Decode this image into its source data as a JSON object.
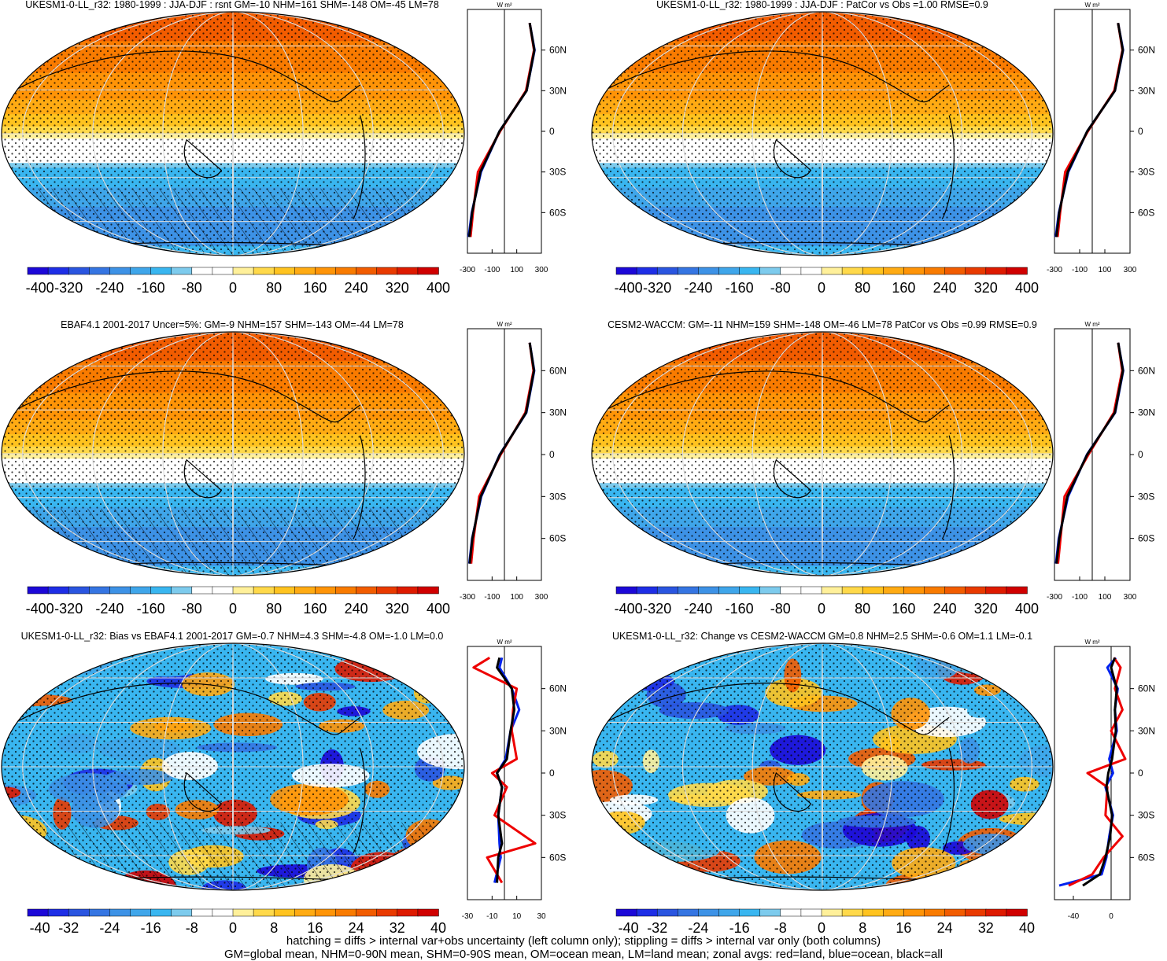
{
  "colors": {
    "ocean_line": "#0022ee",
    "land_line": "#ee0000",
    "all_line": "#000000",
    "stipple": "#000000",
    "coast": "#000000",
    "graticule": "#dddddd"
  },
  "palettes": {
    "absolute": [
      "#1c08d8",
      "#1e2ee6",
      "#2a55e0",
      "#3575e2",
      "#3d92e6",
      "#3fa6ea",
      "#39b6f0",
      "#7dcbed",
      "#ffffff",
      "#ffffff",
      "#fff09a",
      "#ffd94a",
      "#ffc31f",
      "#ffab13",
      "#ff9407",
      "#f97b00",
      "#f25c00",
      "#e93a00",
      "#de1a00",
      "#d00000"
    ],
    "difference": [
      "#1c08d8",
      "#1e2ee6",
      "#2a55e0",
      "#3575e2",
      "#3d92e6",
      "#3fa6ea",
      "#39b6f0",
      "#7dcbed",
      "#ffffff",
      "#ffffff",
      "#fff09a",
      "#ffd94a",
      "#ffc31f",
      "#ffab13",
      "#ff9407",
      "#f97b00",
      "#f25c00",
      "#e93a00",
      "#de1a00",
      "#d00000"
    ]
  },
  "chart_data": [
    {
      "type": "heatmap",
      "title": "UKESM1-0-LL_r32: 1980-1999 : JJA-DJF : rsnt GM=-10 NHM=161 SHM=-148 OM=-45 LM=78",
      "field": "absolute",
      "hatching": true,
      "colorbar": {
        "labels": [
          "-400",
          "-320",
          "-240",
          "-160",
          "-80",
          "0",
          "80",
          "160",
          "240",
          "320",
          "400"
        ],
        "range": [
          -400,
          400
        ]
      },
      "zonal": {
        "unit": "W m²",
        "xlim": [
          -300,
          300
        ],
        "xticks": [
          "-300",
          "-100",
          "100",
          "300"
        ],
        "lat_ticks": [
          "60N",
          "30N",
          "0",
          "30S",
          "60S"
        ],
        "series": [
          {
            "name": "ocean",
            "lat": [
              -78,
              -60,
              -30,
              0,
              30,
              60,
              80
            ],
            "values": [
              -290,
              -265,
              -190,
              -40,
              180,
              245,
              205
            ]
          },
          {
            "name": "land",
            "lat": [
              -78,
              -60,
              -30,
              0,
              30,
              60,
              80
            ],
            "values": [
              -275,
              -255,
              -215,
              -35,
              175,
              240,
              205
            ]
          },
          {
            "name": "all",
            "lat": [
              -78,
              -60,
              -30,
              0,
              30,
              60,
              80
            ],
            "values": [
              -285,
              -262,
              -195,
              -40,
              180,
              243,
              205
            ]
          }
        ]
      }
    },
    {
      "type": "heatmap",
      "title": "UKESM1-0-LL_r32: 1980-1999 : JJA-DJF : PatCor vs Obs =1.00 RMSE=0.9",
      "field": "absolute",
      "hatching": false,
      "colorbar": {
        "labels": [
          "-400",
          "-320",
          "-240",
          "-160",
          "-80",
          "0",
          "80",
          "160",
          "240",
          "320",
          "400"
        ],
        "range": [
          -400,
          400
        ]
      },
      "zonal": {
        "unit": "W m²",
        "xlim": [
          -300,
          300
        ],
        "xticks": [
          "-300",
          "-100",
          "100",
          "300"
        ],
        "lat_ticks": [
          "60N",
          "30N",
          "0",
          "30S",
          "60S"
        ],
        "series": [
          {
            "name": "ocean",
            "lat": [
              -78,
              -60,
              -30,
              0,
              30,
              60,
              80
            ],
            "values": [
              -290,
              -265,
              -190,
              -40,
              180,
              245,
              205
            ]
          },
          {
            "name": "land",
            "lat": [
              -78,
              -60,
              -30,
              0,
              30,
              60,
              80
            ],
            "values": [
              -275,
              -255,
              -215,
              -35,
              175,
              240,
              205
            ]
          },
          {
            "name": "all",
            "lat": [
              -78,
              -60,
              -30,
              0,
              30,
              60,
              80
            ],
            "values": [
              -285,
              -262,
              -195,
              -40,
              180,
              243,
              205
            ]
          }
        ]
      }
    },
    {
      "type": "heatmap",
      "title": "EBAF4.1 2001-2017 Uncer=5%: GM=-9 NHM=157 SHM=-143 OM=-44 LM=78",
      "field": "absolute",
      "hatching": true,
      "colorbar": {
        "labels": [
          "-400",
          "-320",
          "-240",
          "-160",
          "-80",
          "0",
          "80",
          "160",
          "240",
          "320",
          "400"
        ],
        "range": [
          -400,
          400
        ]
      },
      "zonal": {
        "unit": "W m²",
        "xlim": [
          -300,
          300
        ],
        "xticks": [
          "-300",
          "-100",
          "100",
          "300"
        ],
        "lat_ticks": [
          "60N",
          "30N",
          "0",
          "30S",
          "60S"
        ],
        "series": [
          {
            "name": "ocean",
            "lat": [
              -78,
              -60,
              -30,
              0,
              30,
              60,
              80
            ],
            "values": [
              -285,
              -262,
              -188,
              -38,
              178,
              242,
              205
            ]
          },
          {
            "name": "land",
            "lat": [
              -78,
              -60,
              -30,
              0,
              30,
              60,
              80
            ],
            "values": [
              -270,
              -250,
              -205,
              -30,
              170,
              236,
              205
            ]
          },
          {
            "name": "all",
            "lat": [
              -78,
              -60,
              -30,
              0,
              30,
              60,
              80
            ],
            "values": [
              -282,
              -260,
              -192,
              -36,
              176,
              240,
              205
            ]
          }
        ]
      }
    },
    {
      "type": "heatmap",
      "title": "CESM2-WACCM: GM=-11 NHM=159 SHM=-148 OM=-46 LM=78 PatCor vs Obs =0.99 RMSE=0.9",
      "field": "absolute",
      "hatching": false,
      "colorbar": {
        "labels": [
          "-400",
          "-320",
          "-240",
          "-160",
          "-80",
          "0",
          "80",
          "160",
          "240",
          "320",
          "400"
        ],
        "range": [
          -400,
          400
        ]
      },
      "zonal": {
        "unit": "W m²",
        "xlim": [
          -300,
          300
        ],
        "xticks": [
          "-300",
          "-100",
          "100",
          "300"
        ],
        "lat_ticks": [
          "60N",
          "30N",
          "0",
          "30S",
          "60S"
        ],
        "series": [
          {
            "name": "ocean",
            "lat": [
              -78,
              -60,
              -30,
              0,
              30,
              60,
              80
            ],
            "values": [
              -288,
              -266,
              -192,
              -42,
              182,
              246,
              206
            ]
          },
          {
            "name": "land",
            "lat": [
              -78,
              -60,
              -30,
              0,
              30,
              60,
              80
            ],
            "values": [
              -272,
              -252,
              -220,
              -30,
              172,
              238,
              206
            ]
          },
          {
            "name": "all",
            "lat": [
              -78,
              -60,
              -30,
              0,
              30,
              60,
              80
            ],
            "values": [
              -284,
              -262,
              -198,
              -40,
              180,
              244,
              206
            ]
          }
        ]
      }
    },
    {
      "type": "heatmap",
      "title": "UKESM1-0-LL_r32: Bias vs EBAF4.1 2001-2017 GM=-0.7 NHM=4.3 SHM=-4.8 OM=-1.0 LM=0.0",
      "field": "difference",
      "hatching": true,
      "colorbar": {
        "labels": [
          "-40",
          "-32",
          "-24",
          "-16",
          "-8",
          "0",
          "8",
          "16",
          "24",
          "32",
          "40"
        ],
        "range": [
          -40,
          40
        ]
      },
      "zonal": {
        "unit": "W m²",
        "xlim": [
          -30,
          30
        ],
        "xticks": [
          "-30",
          "-10",
          "10",
          "30"
        ],
        "lat_ticks": [
          "60N",
          "30N",
          "0",
          "30S",
          "60S"
        ],
        "series": [
          {
            "name": "ocean",
            "lat": [
              -78,
              -60,
              -50,
              -30,
              -10,
              0,
              10,
              30,
              45,
              60,
              75,
              82
            ],
            "values": [
              -8,
              -3,
              -4,
              -5,
              -2,
              -6,
              1,
              5,
              12,
              6,
              -4,
              -2
            ]
          },
          {
            "name": "land",
            "lat": [
              -78,
              -60,
              -50,
              -30,
              -10,
              0,
              10,
              30,
              45,
              60,
              75,
              82
            ],
            "values": [
              -2,
              -14,
              25,
              -8,
              2,
              -10,
              10,
              6,
              7,
              10,
              -25,
              -12
            ]
          },
          {
            "name": "all",
            "lat": [
              -78,
              -60,
              -50,
              -30,
              -10,
              0,
              10,
              30,
              45,
              60,
              75,
              82
            ],
            "values": [
              -6,
              -5,
              -2,
              -5,
              -2,
              -6,
              2,
              5,
              8,
              6,
              -6,
              -4
            ]
          }
        ]
      }
    },
    {
      "type": "heatmap",
      "title": "UKESM1-0-LL_r32: Change vs CESM2-WACCM GM=0.8 NHM=2.5 SHM=-0.6 OM=1.1 LM=-0.1",
      "field": "difference",
      "hatching": false,
      "colorbar": {
        "labels": [
          "-40",
          "-32",
          "-24",
          "-16",
          "-8",
          "0",
          "8",
          "16",
          "24",
          "32",
          "40"
        ],
        "range": [
          -40,
          40
        ]
      },
      "zonal": {
        "unit": "W m²",
        "xlim": [
          -60,
          20
        ],
        "xticks": [
          "-40",
          "0"
        ],
        "lat_ticks": [
          "60N",
          "30N",
          "0",
          "30S",
          "60S"
        ],
        "series": [
          {
            "name": "ocean",
            "lat": [
              -80,
              -72,
              -60,
              -45,
              -30,
              -10,
              0,
              10,
              30,
              45,
              60,
              75,
              82
            ],
            "values": [
              -55,
              -10,
              -5,
              -2,
              2,
              -6,
              2,
              -2,
              6,
              4,
              7,
              -4,
              5
            ]
          },
          {
            "name": "land",
            "lat": [
              -80,
              -72,
              -60,
              -45,
              -30,
              -10,
              0,
              10,
              30,
              45,
              60,
              75,
              82
            ],
            "values": [
              -45,
              -20,
              -8,
              12,
              -6,
              -4,
              -25,
              15,
              0,
              12,
              4,
              10,
              3
            ]
          },
          {
            "name": "all",
            "lat": [
              -80,
              -72,
              -60,
              -45,
              -30,
              -10,
              0,
              10,
              30,
              45,
              60,
              75,
              82
            ],
            "values": [
              -30,
              -12,
              -6,
              -1,
              1,
              -5,
              -3,
              1,
              5,
              4,
              6,
              0,
              4
            ]
          }
        ]
      }
    }
  ],
  "footer": {
    "line1": "hatching = diffs > internal var+obs uncertainty (left column only); stippling = diffs > internal var only (both columns)",
    "line2": "GM=global mean, NHM=0-90N mean, SHM=0-90S mean, OM=ocean mean, LM=land mean; zonal avgs: red=land, blue=ocean, black=all"
  }
}
